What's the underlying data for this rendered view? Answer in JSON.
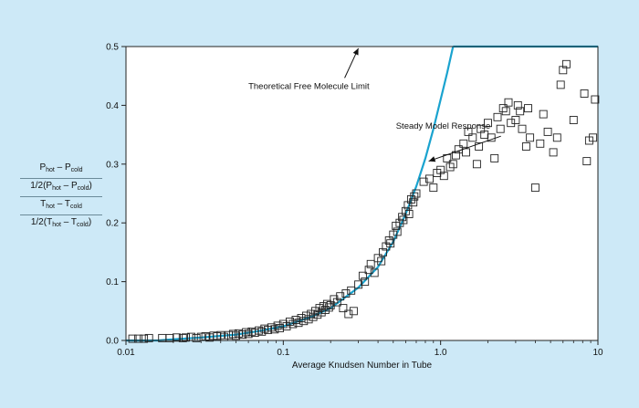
{
  "chart_data": {
    "type": "scatter",
    "xscale": "log",
    "xlim": [
      0.01,
      10
    ],
    "ylim": [
      0,
      0.5
    ],
    "xlabel": "Average Knudsen Number in Tube",
    "xticks": [
      {
        "value": 0.01,
        "label": "0.01"
      },
      {
        "value": 0.1,
        "label": "0.1"
      },
      {
        "value": 1,
        "label": "1.0"
      },
      {
        "value": 10,
        "label": "10"
      }
    ],
    "yticks": [
      {
        "value": 0,
        "label": "0.0"
      },
      {
        "value": 0.1,
        "label": "0.1"
      },
      {
        "value": 0.2,
        "label": "0.2"
      },
      {
        "value": 0.3,
        "label": "0.3"
      },
      {
        "value": 0.4,
        "label": "0.4"
      },
      {
        "value": 0.5,
        "label": "0.5"
      }
    ],
    "ylabel_lines": {
      "p_num_main_1": "P",
      "p_num_sub_1": "hot",
      "p_num_mid": " – P",
      "p_num_sub_2": "cold",
      "p_den_pre": "1/2(P",
      "p_den_sub_1": "hot",
      "p_den_mid": " – P",
      "p_den_sub_2": "cold",
      "p_den_post": ")",
      "t_num_main_1": "T",
      "t_num_sub_1": "hot",
      "t_num_mid": " – T",
      "t_num_sub_2": "cold",
      "t_den_pre": "1/2(T",
      "t_den_sub_1": "hot",
      "t_den_mid": " – T",
      "t_den_sub_2": "cold",
      "t_den_post": ")"
    },
    "grid": false,
    "colors": {
      "background": "#cde9f7",
      "plot_area": "#ffffff",
      "model_curve": "#1aa3cf",
      "markers": "#222222"
    },
    "model_curve": {
      "x": [
        0.01,
        0.016,
        0.02,
        0.03,
        0.05,
        0.07,
        0.1,
        0.15,
        0.2,
        0.3,
        0.4,
        0.5,
        0.6,
        0.7,
        0.8,
        0.9,
        1.0,
        1.1,
        1.2
      ],
      "y": [
        0,
        0,
        0.002,
        0.005,
        0.01,
        0.016,
        0.024,
        0.04,
        0.055,
        0.09,
        0.125,
        0.168,
        0.215,
        0.262,
        0.31,
        0.36,
        0.41,
        0.455,
        0.5
      ]
    },
    "free_molecule_limit": {
      "y": 0.5,
      "x_start": 1.2,
      "x_end": 10
    },
    "annotations": [
      {
        "text": "Theoretical Free Molecule Limit",
        "x": 0.06,
        "y": 0.428,
        "arrow_to": {
          "x": 0.3,
          "y": 0.497
        }
      },
      {
        "text": "Steady Model Response",
        "x": 0.52,
        "y": 0.36,
        "arrow_to": {
          "x": 0.84,
          "y": 0.305
        }
      }
    ],
    "series": [
      {
        "x": [
          0.011,
          0.012,
          0.013,
          0.014,
          0.017,
          0.019,
          0.021,
          0.023,
          0.024,
          0.026,
          0.028,
          0.03,
          0.032,
          0.034,
          0.036,
          0.038,
          0.04,
          0.042,
          0.045,
          0.048,
          0.05,
          0.052,
          0.055,
          0.058,
          0.06,
          0.063,
          0.066,
          0.07,
          0.073,
          0.076,
          0.08,
          0.084,
          0.088,
          0.092,
          0.095,
          0.1,
          0.105,
          0.11,
          0.115,
          0.12,
          0.125,
          0.13,
          0.135,
          0.14,
          0.145,
          0.15,
          0.155,
          0.16,
          0.165,
          0.17,
          0.175,
          0.18,
          0.185,
          0.19,
          0.195,
          0.2,
          0.21,
          0.22,
          0.23,
          0.24,
          0.25,
          0.26,
          0.27,
          0.28,
          0.3,
          0.32,
          0.33,
          0.35,
          0.36,
          0.38,
          0.4,
          0.42,
          0.43,
          0.45,
          0.47,
          0.48,
          0.5,
          0.52,
          0.53,
          0.55,
          0.57,
          0.58,
          0.6,
          0.62,
          0.63,
          0.65,
          0.67,
          0.68,
          0.7,
          0.78,
          0.85,
          0.9,
          0.95,
          1.0,
          1.05,
          1.1,
          1.15,
          1.2,
          1.25,
          1.3,
          1.4,
          1.45,
          1.5,
          1.6,
          1.7,
          1.75,
          1.8,
          1.9,
          2.0,
          2.1,
          2.2,
          2.3,
          2.4,
          2.5,
          2.6,
          2.7,
          2.8,
          3.0,
          3.1,
          3.2,
          3.3,
          3.5,
          3.6,
          3.7,
          4.0,
          4.3,
          4.5,
          4.8,
          5.2,
          5.5,
          5.8,
          6.0,
          6.3,
          7.0,
          8.2,
          8.5,
          8.8,
          9.3,
          9.6
        ],
        "y": [
          0.003,
          0.003,
          0.003,
          0.004,
          0.004,
          0.004,
          0.005,
          0.004,
          0.005,
          0.006,
          0.004,
          0.006,
          0.007,
          0.005,
          0.008,
          0.007,
          0.009,
          0.006,
          0.009,
          0.011,
          0.008,
          0.012,
          0.01,
          0.014,
          0.011,
          0.015,
          0.013,
          0.017,
          0.015,
          0.02,
          0.018,
          0.022,
          0.019,
          0.025,
          0.021,
          0.028,
          0.024,
          0.032,
          0.028,
          0.035,
          0.03,
          0.038,
          0.033,
          0.042,
          0.036,
          0.045,
          0.04,
          0.05,
          0.044,
          0.055,
          0.048,
          0.058,
          0.052,
          0.062,
          0.056,
          0.06,
          0.07,
          0.065,
          0.075,
          0.055,
          0.08,
          0.045,
          0.085,
          0.05,
          0.095,
          0.11,
          0.1,
          0.12,
          0.13,
          0.115,
          0.14,
          0.135,
          0.15,
          0.16,
          0.17,
          0.165,
          0.18,
          0.195,
          0.185,
          0.2,
          0.21,
          0.205,
          0.22,
          0.23,
          0.215,
          0.24,
          0.235,
          0.245,
          0.25,
          0.27,
          0.275,
          0.26,
          0.285,
          0.29,
          0.28,
          0.31,
          0.295,
          0.3,
          0.315,
          0.325,
          0.335,
          0.32,
          0.355,
          0.345,
          0.3,
          0.33,
          0.36,
          0.35,
          0.37,
          0.345,
          0.31,
          0.38,
          0.36,
          0.395,
          0.39,
          0.405,
          0.37,
          0.375,
          0.4,
          0.39,
          0.36,
          0.33,
          0.395,
          0.345,
          0.26,
          0.335,
          0.385,
          0.355,
          0.32,
          0.345,
          0.435,
          0.46,
          0.47,
          0.375,
          0.42,
          0.305,
          0.34,
          0.345,
          0.41
        ]
      }
    ]
  }
}
